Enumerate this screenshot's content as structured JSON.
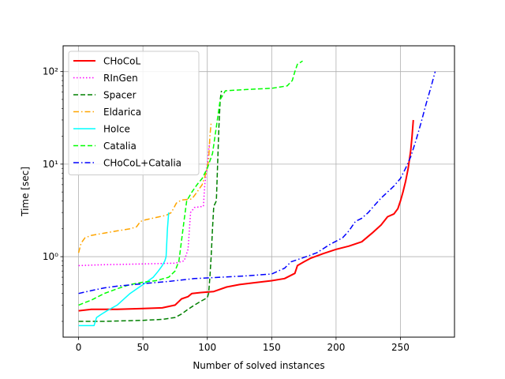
{
  "chart_data": {
    "type": "line",
    "xlabel": "Number of solved instances",
    "ylabel": "Time [sec]",
    "xlim": [
      -12,
      292
    ],
    "ylim": [
      0.135,
      190
    ],
    "yscale": "log",
    "xticks": [
      0,
      50,
      100,
      150,
      200,
      250
    ],
    "yticks": [
      {
        "value": 1,
        "label": "10⁰"
      },
      {
        "value": 10,
        "label": "10¹"
      },
      {
        "value": 100,
        "label": "10²"
      }
    ],
    "grid": true,
    "legend_position": "upper-left",
    "series": [
      {
        "name": "CHoCoL",
        "color": "#ff0000",
        "dash": "solid",
        "width": 2,
        "points": [
          [
            0,
            0.26
          ],
          [
            10,
            0.27
          ],
          [
            30,
            0.27
          ],
          [
            50,
            0.275
          ],
          [
            65,
            0.28
          ],
          [
            75,
            0.3
          ],
          [
            80,
            0.35
          ],
          [
            85,
            0.37
          ],
          [
            88,
            0.4
          ],
          [
            95,
            0.41
          ],
          [
            105,
            0.42
          ],
          [
            115,
            0.47
          ],
          [
            125,
            0.5
          ],
          [
            135,
            0.52
          ],
          [
            150,
            0.55
          ],
          [
            160,
            0.58
          ],
          [
            168,
            0.66
          ],
          [
            170,
            0.8
          ],
          [
            175,
            0.88
          ],
          [
            180,
            0.96
          ],
          [
            190,
            1.08
          ],
          [
            200,
            1.2
          ],
          [
            210,
            1.3
          ],
          [
            220,
            1.45
          ],
          [
            228,
            1.8
          ],
          [
            235,
            2.2
          ],
          [
            240,
            2.7
          ],
          [
            245,
            2.9
          ],
          [
            248,
            3.3
          ],
          [
            250,
            4.0
          ],
          [
            252,
            5.0
          ],
          [
            254,
            6.5
          ],
          [
            256,
            9.0
          ],
          [
            258,
            14.0
          ],
          [
            259,
            20.0
          ],
          [
            260,
            30.0
          ]
        ]
      },
      {
        "name": "RInGen",
        "color": "#ff00ff",
        "dash": "dotted",
        "width": 1.5,
        "points": [
          [
            0,
            0.8
          ],
          [
            20,
            0.82
          ],
          [
            40,
            0.83
          ],
          [
            60,
            0.84
          ],
          [
            75,
            0.85
          ],
          [
            82,
            0.9
          ],
          [
            85,
            1.2
          ],
          [
            87,
            3.0
          ],
          [
            90,
            3.4
          ],
          [
            97,
            3.5
          ],
          [
            98,
            6.0
          ],
          [
            100,
            10.0
          ],
          [
            101,
            14.0
          ],
          [
            102,
            18.0
          ]
        ]
      },
      {
        "name": "Spacer",
        "color": "#008000",
        "dash": "dashed",
        "width": 1.5,
        "points": [
          [
            0,
            0.2
          ],
          [
            20,
            0.2
          ],
          [
            50,
            0.205
          ],
          [
            65,
            0.21
          ],
          [
            75,
            0.22
          ],
          [
            80,
            0.24
          ],
          [
            85,
            0.27
          ],
          [
            90,
            0.3
          ],
          [
            95,
            0.33
          ],
          [
            100,
            0.36
          ],
          [
            101,
            0.4
          ],
          [
            102,
            0.6
          ],
          [
            103,
            1.0
          ],
          [
            104,
            2.0
          ],
          [
            105,
            3.5
          ],
          [
            107,
            4.0
          ],
          [
            108,
            10.0
          ],
          [
            109,
            25.0
          ],
          [
            110,
            50.0
          ],
          [
            111,
            62.0
          ]
        ]
      },
      {
        "name": "Eldarica",
        "color": "#ffa500",
        "dash": "dashdot",
        "width": 1.5,
        "points": [
          [
            0,
            1.1
          ],
          [
            2,
            1.4
          ],
          [
            5,
            1.6
          ],
          [
            10,
            1.7
          ],
          [
            20,
            1.8
          ],
          [
            30,
            1.9
          ],
          [
            40,
            2.0
          ],
          [
            45,
            2.1
          ],
          [
            48,
            2.4
          ],
          [
            52,
            2.5
          ],
          [
            60,
            2.65
          ],
          [
            68,
            2.8
          ],
          [
            72,
            3.0
          ],
          [
            76,
            3.8
          ],
          [
            80,
            4.1
          ],
          [
            88,
            4.2
          ],
          [
            92,
            5.0
          ],
          [
            96,
            6.0
          ],
          [
            99,
            8.0
          ],
          [
            101,
            11.0
          ],
          [
            102,
            20.0
          ],
          [
            103,
            28.0
          ]
        ]
      },
      {
        "name": "HoIce",
        "color": "#00ffff",
        "dash": "solid",
        "width": 1.5,
        "points": [
          [
            0,
            0.18
          ],
          [
            12,
            0.18
          ],
          [
            14,
            0.22
          ],
          [
            18,
            0.24
          ],
          [
            22,
            0.26
          ],
          [
            30,
            0.3
          ],
          [
            40,
            0.4
          ],
          [
            50,
            0.5
          ],
          [
            58,
            0.6
          ],
          [
            62,
            0.7
          ],
          [
            65,
            0.8
          ],
          [
            67,
            0.9
          ],
          [
            68,
            1.0
          ],
          [
            69,
            2.0
          ],
          [
            70,
            3.0
          ]
        ]
      },
      {
        "name": "Catalia",
        "color": "#00ff00",
        "dash": "dashed",
        "width": 1.5,
        "points": [
          [
            0,
            0.3
          ],
          [
            10,
            0.34
          ],
          [
            20,
            0.4
          ],
          [
            30,
            0.45
          ],
          [
            40,
            0.5
          ],
          [
            50,
            0.53
          ],
          [
            60,
            0.55
          ],
          [
            70,
            0.6
          ],
          [
            75,
            0.7
          ],
          [
            78,
            0.9
          ],
          [
            80,
            1.5
          ],
          [
            82,
            2.5
          ],
          [
            84,
            4.0
          ],
          [
            88,
            5.0
          ],
          [
            92,
            6.0
          ],
          [
            96,
            7.0
          ],
          [
            100,
            9.0
          ],
          [
            104,
            13.0
          ],
          [
            106,
            20.0
          ],
          [
            110,
            50.0
          ],
          [
            114,
            62.0
          ],
          [
            130,
            64.0
          ],
          [
            150,
            66.0
          ],
          [
            162,
            70.0
          ],
          [
            166,
            80.0
          ],
          [
            168,
            100.0
          ],
          [
            170,
            120.0
          ],
          [
            174,
            130.0
          ]
        ]
      },
      {
        "name": "CHoCoL+Catalia",
        "color": "#0000ff",
        "dash": "dashdot",
        "width": 1.5,
        "points": [
          [
            0,
            0.4
          ],
          [
            10,
            0.43
          ],
          [
            20,
            0.46
          ],
          [
            30,
            0.48
          ],
          [
            50,
            0.51
          ],
          [
            70,
            0.54
          ],
          [
            90,
            0.58
          ],
          [
            110,
            0.6
          ],
          [
            130,
            0.62
          ],
          [
            150,
            0.65
          ],
          [
            160,
            0.75
          ],
          [
            165,
            0.88
          ],
          [
            175,
            0.98
          ],
          [
            185,
            1.1
          ],
          [
            195,
            1.35
          ],
          [
            205,
            1.6
          ],
          [
            210,
            1.9
          ],
          [
            215,
            2.4
          ],
          [
            220,
            2.6
          ],
          [
            225,
            3.0
          ],
          [
            230,
            3.6
          ],
          [
            235,
            4.3
          ],
          [
            240,
            5.0
          ],
          [
            245,
            5.8
          ],
          [
            250,
            7.0
          ],
          [
            254,
            9.0
          ],
          [
            258,
            12.0
          ],
          [
            262,
            18.0
          ],
          [
            266,
            28.0
          ],
          [
            270,
            45.0
          ],
          [
            274,
            70.0
          ],
          [
            277,
            100.0
          ]
        ]
      }
    ]
  }
}
